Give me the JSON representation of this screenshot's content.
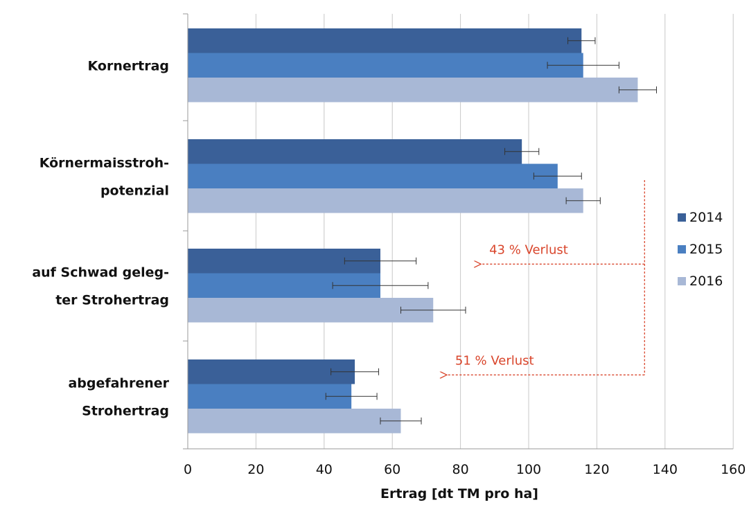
{
  "chart_data": {
    "type": "bar",
    "orientation": "horizontal",
    "categories": [
      [
        "Kornertrag"
      ],
      [
        "Körnermaisstroh-",
        "potenzial"
      ],
      [
        "auf Schwad geleg-",
        "ter Strohertrag"
      ],
      [
        "abgefahrener",
        "Strohertrag"
      ]
    ],
    "series": [
      {
        "name": "2014",
        "color": "#3a6098",
        "values": [
          115.5,
          98,
          56.5,
          49
        ],
        "errors": [
          4,
          5,
          10.5,
          7
        ]
      },
      {
        "name": "2015",
        "color": "#4a7fc1",
        "values": [
          116,
          108.5,
          56.5,
          48
        ],
        "errors": [
          10.5,
          7,
          14,
          7.5
        ]
      },
      {
        "name": "2016",
        "color": "#a8b8d6",
        "values": [
          132,
          116,
          72,
          62.5
        ],
        "errors": [
          5.5,
          5,
          9.5,
          6
        ]
      }
    ],
    "xlabel": "Ertrag [dt TM pro ha]",
    "xlim": [
      0,
      160
    ],
    "xticks": [
      0,
      20,
      40,
      60,
      80,
      100,
      120,
      140,
      160
    ],
    "grid": "vertical",
    "legend_position": "right",
    "annotations": [
      {
        "text": "43 % Verlust",
        "from_value": 134,
        "to_value": 86,
        "target_category": 2,
        "color": "#d9452b"
      },
      {
        "text": "51 % Verlust",
        "from_value": 134,
        "to_value": 76,
        "target_category": 3,
        "color": "#d9452b"
      }
    ]
  }
}
